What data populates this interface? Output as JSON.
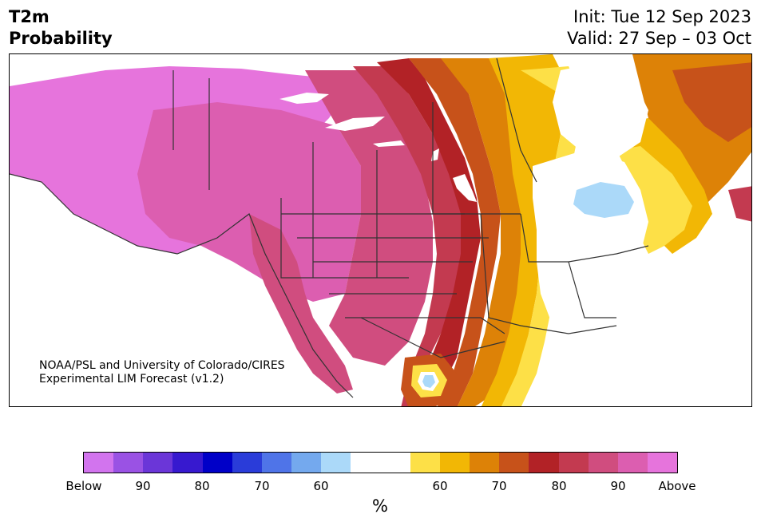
{
  "title": {
    "line1": "T2m",
    "line2": "Probability"
  },
  "dates": {
    "init": "Init: Tue 12 Sep 2023",
    "valid": "Valid: 27 Sep – 03 Oct"
  },
  "credit": {
    "line1": "NOAA/PSL and University of Colorado/CIRES",
    "line2": "Experimental LIM Forecast (v1.2)"
  },
  "colorbar": {
    "colors": [
      "#d274ee",
      "#9a52e4",
      "#6b36d8",
      "#3719cf",
      "#0000c8",
      "#2a3cd9",
      "#4f74e8",
      "#74a9ee",
      "#abd9f9",
      "#ffffff",
      "#ffffff",
      "#fde047",
      "#f2b705",
      "#dd8207",
      "#c7521a",
      "#b22226",
      "#c33a50",
      "#d04d7f",
      "#dc5eb0",
      "#e674dc"
    ],
    "ticks": [
      "Below",
      "90",
      "80",
      "70",
      "60",
      "60",
      "70",
      "80",
      "90",
      "Above"
    ],
    "unit": "%"
  },
  "palette": {
    "above_magenta": "#e674dc",
    "above_pink": "#dc5eb0",
    "above_rose": "#d04d7f",
    "above_crimson": "#c33a50",
    "red": "#b22226",
    "orange_red": "#c7521a",
    "orange": "#dd8207",
    "gold": "#f2b705",
    "yellow": "#fde047",
    "below_light_blue": "#abd9f9",
    "lakes": "#ffffff",
    "borders": "#333333"
  }
}
